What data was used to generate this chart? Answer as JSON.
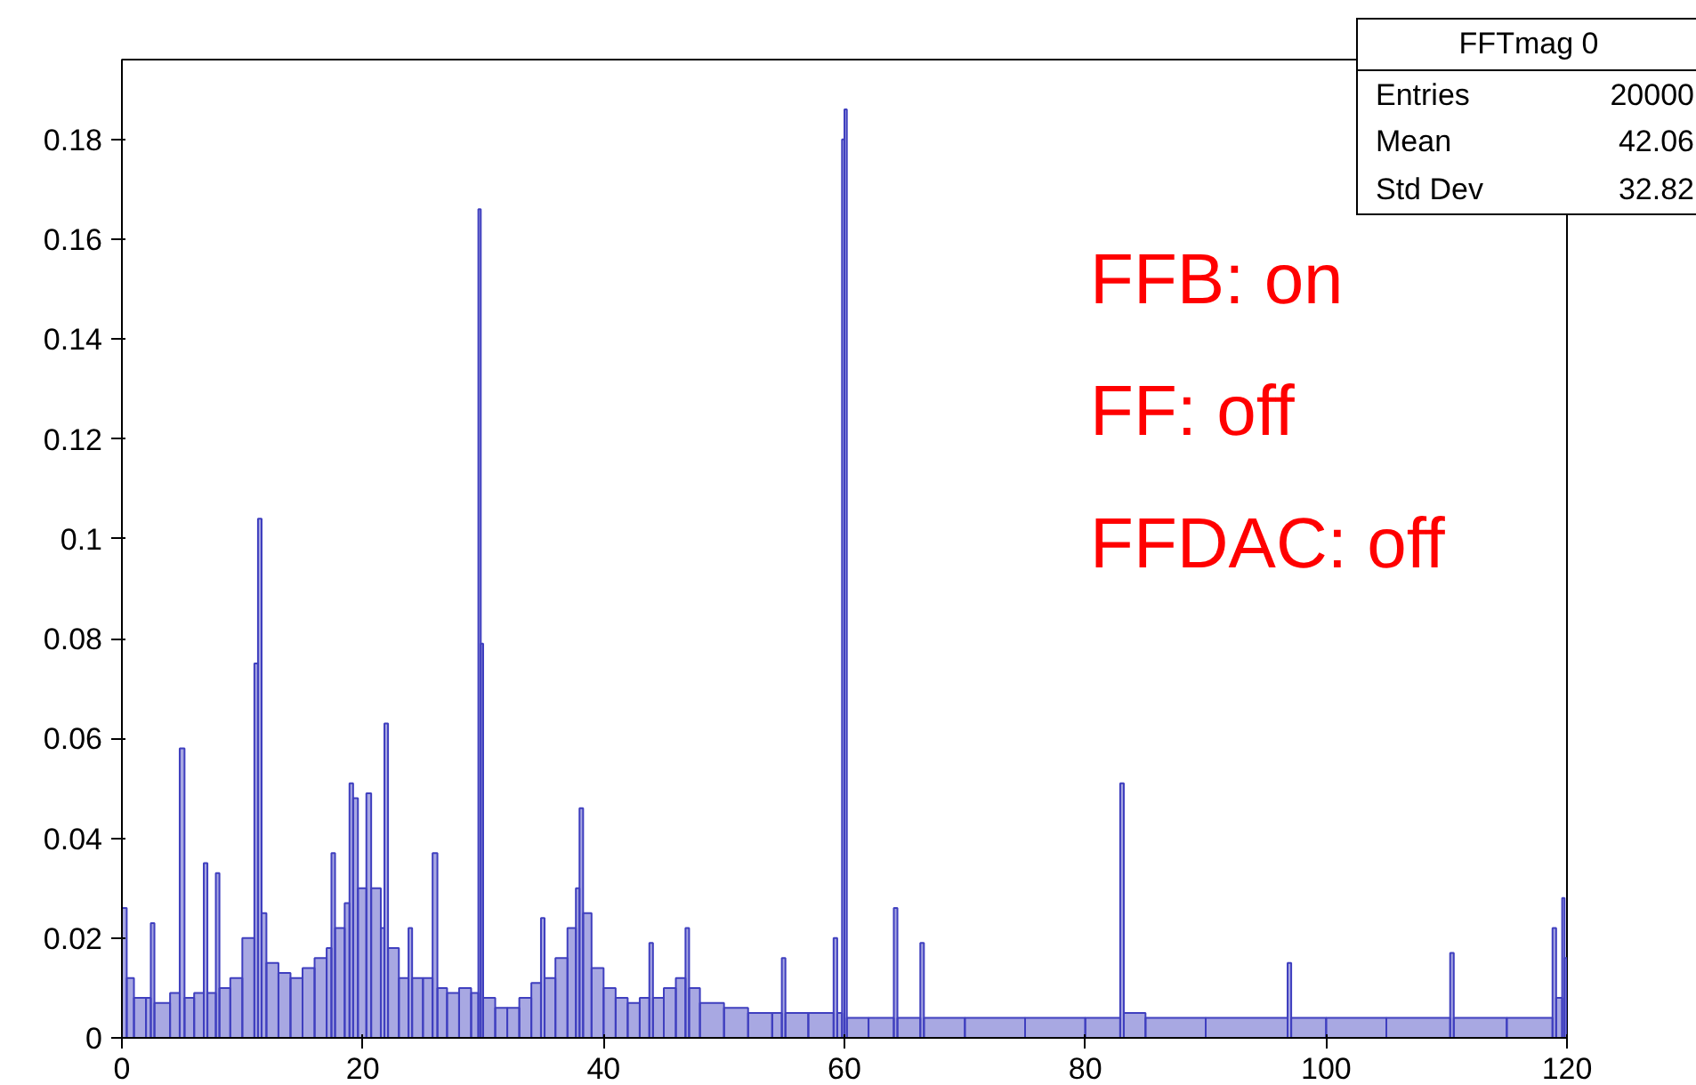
{
  "chart_data": {
    "type": "histogram",
    "bins": [
      0,
      0.4,
      1,
      2,
      2.4,
      2.7,
      4,
      4.8,
      5.2,
      6,
      6.8,
      7.1,
      7.8,
      8.1,
      9,
      10,
      11,
      11.3,
      11.6,
      12,
      13,
      14,
      15,
      16,
      17,
      17.4,
      17.7,
      18.5,
      18.9,
      19.2,
      19.6,
      20.3,
      20.7,
      21.5,
      21.8,
      22.1,
      23,
      23.8,
      24.1,
      25,
      25.8,
      26.2,
      27,
      28,
      29,
      29.6,
      29.8,
      30,
      31,
      32,
      33,
      34,
      34.8,
      35.1,
      36,
      37,
      37.7,
      38,
      38.3,
      39,
      40,
      41,
      42,
      43,
      43.8,
      44.1,
      45,
      46,
      46.8,
      47.1,
      48,
      50,
      52,
      54,
      54.8,
      55.1,
      57,
      59.1,
      59.4,
      59.8,
      60,
      60.2,
      62,
      64.1,
      64.4,
      66.3,
      66.6,
      70,
      75,
      80,
      82.9,
      83.2,
      85,
      90,
      96.8,
      97.1,
      100,
      105,
      110.3,
      110.6,
      115,
      118.8,
      119.1,
      119.6,
      119.8,
      120
    ],
    "values": [
      0.026,
      0.012,
      0.008,
      0.008,
      0.023,
      0.007,
      0.009,
      0.058,
      0.008,
      0.009,
      0.035,
      0.009,
      0.033,
      0.01,
      0.012,
      0.02,
      0.075,
      0.104,
      0.025,
      0.015,
      0.013,
      0.012,
      0.014,
      0.016,
      0.018,
      0.037,
      0.022,
      0.027,
      0.051,
      0.048,
      0.03,
      0.049,
      0.03,
      0.022,
      0.063,
      0.018,
      0.012,
      0.022,
      0.012,
      0.012,
      0.037,
      0.01,
      0.009,
      0.01,
      0.009,
      0.166,
      0.079,
      0.008,
      0.006,
      0.006,
      0.008,
      0.011,
      0.024,
      0.012,
      0.016,
      0.022,
      0.03,
      0.046,
      0.025,
      0.014,
      0.01,
      0.008,
      0.007,
      0.008,
      0.019,
      0.008,
      0.01,
      0.012,
      0.022,
      0.01,
      0.007,
      0.006,
      0.005,
      0.005,
      0.016,
      0.005,
      0.005,
      0.02,
      0.005,
      0.18,
      0.186,
      0.004,
      0.004,
      0.026,
      0.004,
      0.019,
      0.004,
      0.004,
      0.004,
      0.004,
      0.051,
      0.005,
      0.004,
      0.004,
      0.015,
      0.004,
      0.004,
      0.004,
      0.017,
      0.004,
      0.004,
      0.022,
      0.008,
      0.028,
      0.016
    ],
    "color": "#3f3fbf",
    "xlim": [
      0,
      120
    ],
    "xticks": [
      0,
      20,
      40,
      60,
      80,
      100,
      120
    ],
    "ylim": [
      0,
      0.196
    ],
    "yticks": [
      0,
      0.02,
      0.04,
      0.06,
      0.08,
      0.1,
      0.12,
      0.14,
      0.16,
      0.18
    ],
    "grid": false,
    "annotations": [
      "FFTmag 0",
      "Entries",
      "20000",
      "Mean",
      "42.06",
      "Std Dev",
      "32.82",
      "FFB: on",
      "FF: off",
      "FFDAC: off"
    ]
  }
}
